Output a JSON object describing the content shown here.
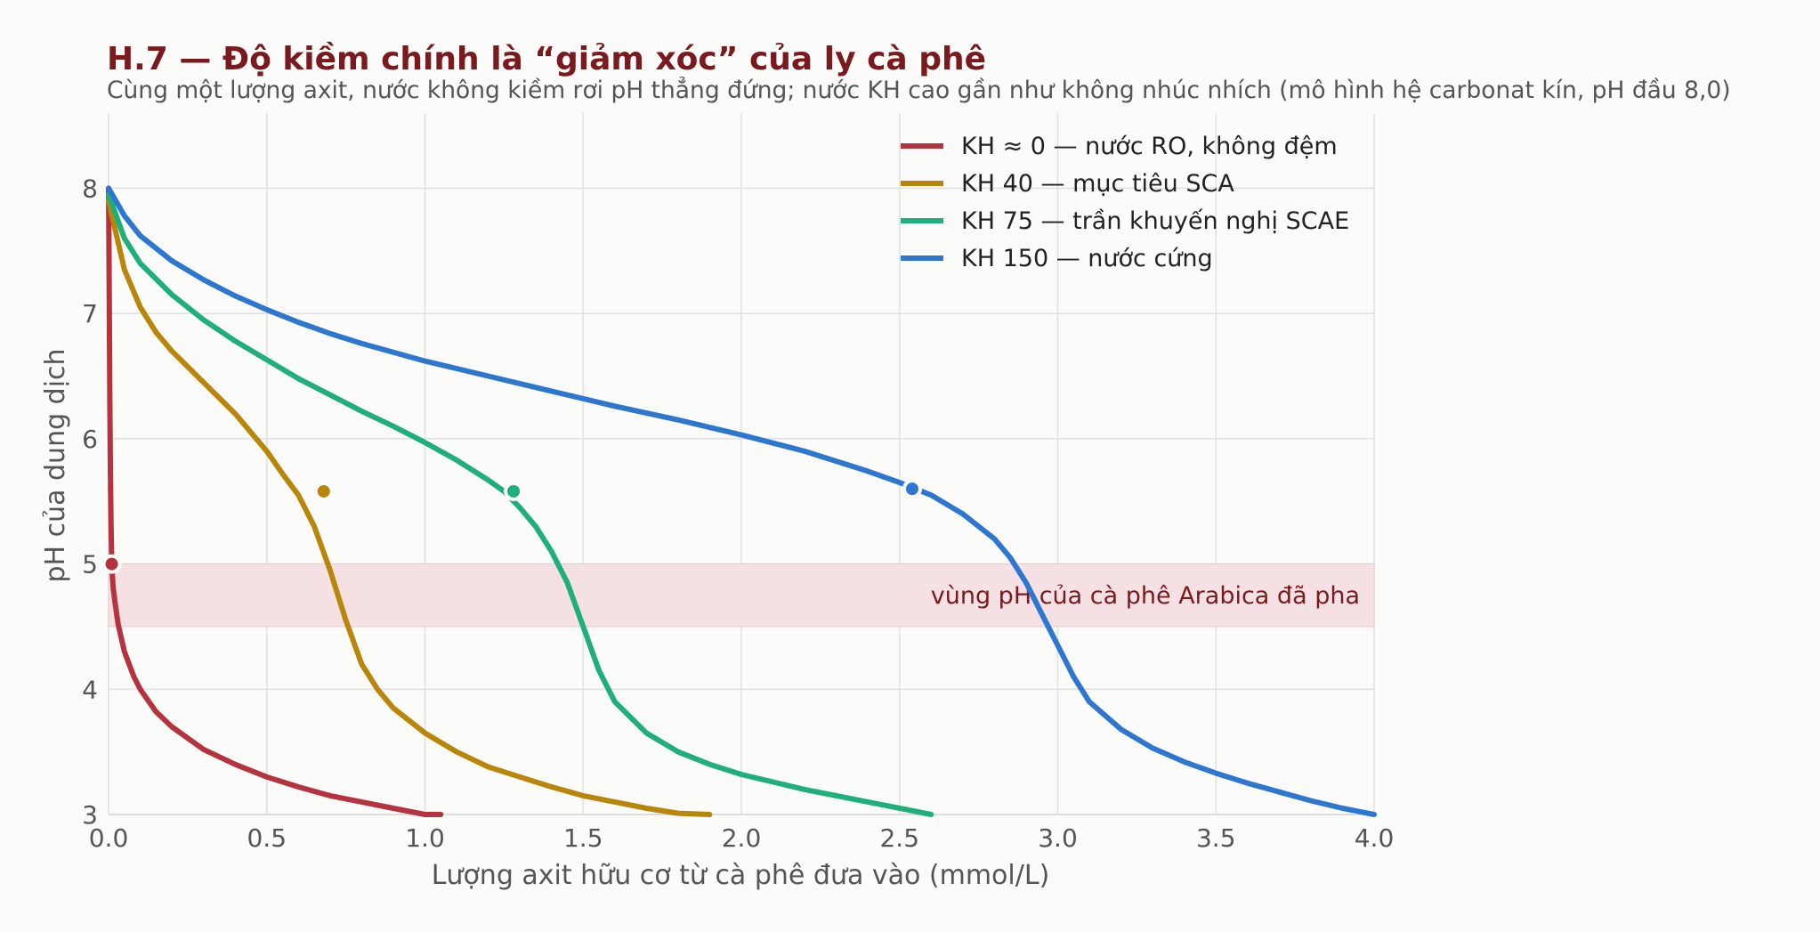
{
  "chart_data": {
    "type": "line",
    "title": "H.7 — Độ kiềm chính là “giảm xóc” của ly cà phê",
    "subtitle": "Cùng một lượng axit, nước không kiềm rơi pH thẳng đứng; nước KH cao gần như không nhúc nhích (mô hình hệ carbonat kín, pH đầu 8,0)",
    "xlabel": "Lượng axit hữu cơ từ cà phê đưa vào (mmol/L)",
    "ylabel": "pH của dung dịch",
    "xlim": [
      0,
      4
    ],
    "ylim": [
      3,
      8.6
    ],
    "x_ticks": [
      "0.0",
      "0.5",
      "1.0",
      "1.5",
      "2.0",
      "2.5",
      "3.0",
      "3.5",
      "4.0"
    ],
    "x_tick_values": [
      0,
      0.5,
      1,
      1.5,
      2,
      2.5,
      3,
      3.5,
      4
    ],
    "y_ticks": [
      "3",
      "4",
      "5",
      "6",
      "7",
      "8"
    ],
    "y_tick_values": [
      3,
      4,
      5,
      6,
      7,
      8
    ],
    "grid": true,
    "legend_position": "top-right",
    "band": {
      "y_from": 4.5,
      "y_to": 5.0,
      "label": "vùng pH của cà phê Arabica đã pha",
      "color": "#f5e1e4"
    },
    "series": [
      {
        "name": "KH ≈ 0 — nước RO, không đệm",
        "color": "#b5333f",
        "x": [
          0,
          0.002,
          0.004,
          0.006,
          0.008,
          0.01,
          0.012,
          0.015,
          0.02,
          0.03,
          0.05,
          0.08,
          0.1,
          0.15,
          0.2,
          0.3,
          0.4,
          0.5,
          0.6,
          0.7,
          0.8,
          0.9,
          1.0,
          1.05
        ],
        "y": [
          8.0,
          7.2,
          6.3,
          5.7,
          5.3,
          5.0,
          4.9,
          4.8,
          4.7,
          4.52,
          4.3,
          4.1,
          4.0,
          3.82,
          3.7,
          3.52,
          3.4,
          3.3,
          3.22,
          3.15,
          3.1,
          3.05,
          3.0,
          2.98
        ],
        "marker": {
          "x": 0.01,
          "y": 5.0
        }
      },
      {
        "name": "KH 40 — mục tiêu SCA",
        "color": "#b8860b",
        "x": [
          0,
          0.05,
          0.1,
          0.15,
          0.2,
          0.3,
          0.4,
          0.5,
          0.55,
          0.6,
          0.65,
          0.7,
          0.75,
          0.8,
          0.85,
          0.9,
          1.0,
          1.1,
          1.2,
          1.3,
          1.4,
          1.5,
          1.6,
          1.7,
          1.8,
          1.9
        ],
        "y": [
          7.9,
          7.35,
          7.05,
          6.85,
          6.7,
          6.45,
          6.2,
          5.9,
          5.72,
          5.55,
          5.3,
          4.95,
          4.55,
          4.2,
          4.0,
          3.85,
          3.65,
          3.5,
          3.38,
          3.3,
          3.22,
          3.15,
          3.1,
          3.05,
          3.01,
          2.98
        ],
        "marker": {
          "x": 0.68,
          "y": 5.58
        }
      },
      {
        "name": "KH 75 — trần khuyến nghị SCAE",
        "color": "#1faf7a",
        "x": [
          0,
          0.05,
          0.1,
          0.2,
          0.3,
          0.4,
          0.5,
          0.6,
          0.7,
          0.8,
          0.9,
          1.0,
          1.1,
          1.2,
          1.25,
          1.3,
          1.35,
          1.4,
          1.45,
          1.5,
          1.55,
          1.6,
          1.7,
          1.8,
          1.9,
          2.0,
          2.2,
          2.4,
          2.6
        ],
        "y": [
          7.95,
          7.6,
          7.4,
          7.15,
          6.95,
          6.78,
          6.63,
          6.48,
          6.35,
          6.22,
          6.1,
          5.97,
          5.83,
          5.67,
          5.58,
          5.45,
          5.3,
          5.1,
          4.85,
          4.5,
          4.15,
          3.9,
          3.65,
          3.5,
          3.4,
          3.32,
          3.2,
          3.1,
          2.99
        ],
        "marker": {
          "x": 1.28,
          "y": 5.58
        }
      },
      {
        "name": "KH 150 — nước cứng",
        "color": "#2e77d0",
        "x": [
          0,
          0.05,
          0.1,
          0.2,
          0.3,
          0.4,
          0.5,
          0.6,
          0.7,
          0.8,
          1.0,
          1.2,
          1.4,
          1.6,
          1.8,
          2.0,
          2.2,
          2.4,
          2.5,
          2.6,
          2.7,
          2.8,
          2.85,
          2.9,
          2.95,
          3.0,
          3.05,
          3.1,
          3.2,
          3.3,
          3.4,
          3.5,
          3.6,
          3.7,
          3.8,
          3.9,
          4.0
        ],
        "y": [
          8.0,
          7.78,
          7.62,
          7.42,
          7.27,
          7.14,
          7.03,
          6.93,
          6.84,
          6.76,
          6.62,
          6.5,
          6.38,
          6.26,
          6.15,
          6.03,
          5.9,
          5.74,
          5.65,
          5.55,
          5.4,
          5.2,
          5.05,
          4.85,
          4.6,
          4.35,
          4.1,
          3.9,
          3.68,
          3.53,
          3.42,
          3.33,
          3.25,
          3.18,
          3.11,
          3.05,
          3.0
        ],
        "marker": {
          "x": 2.54,
          "y": 5.6
        }
      }
    ]
  }
}
